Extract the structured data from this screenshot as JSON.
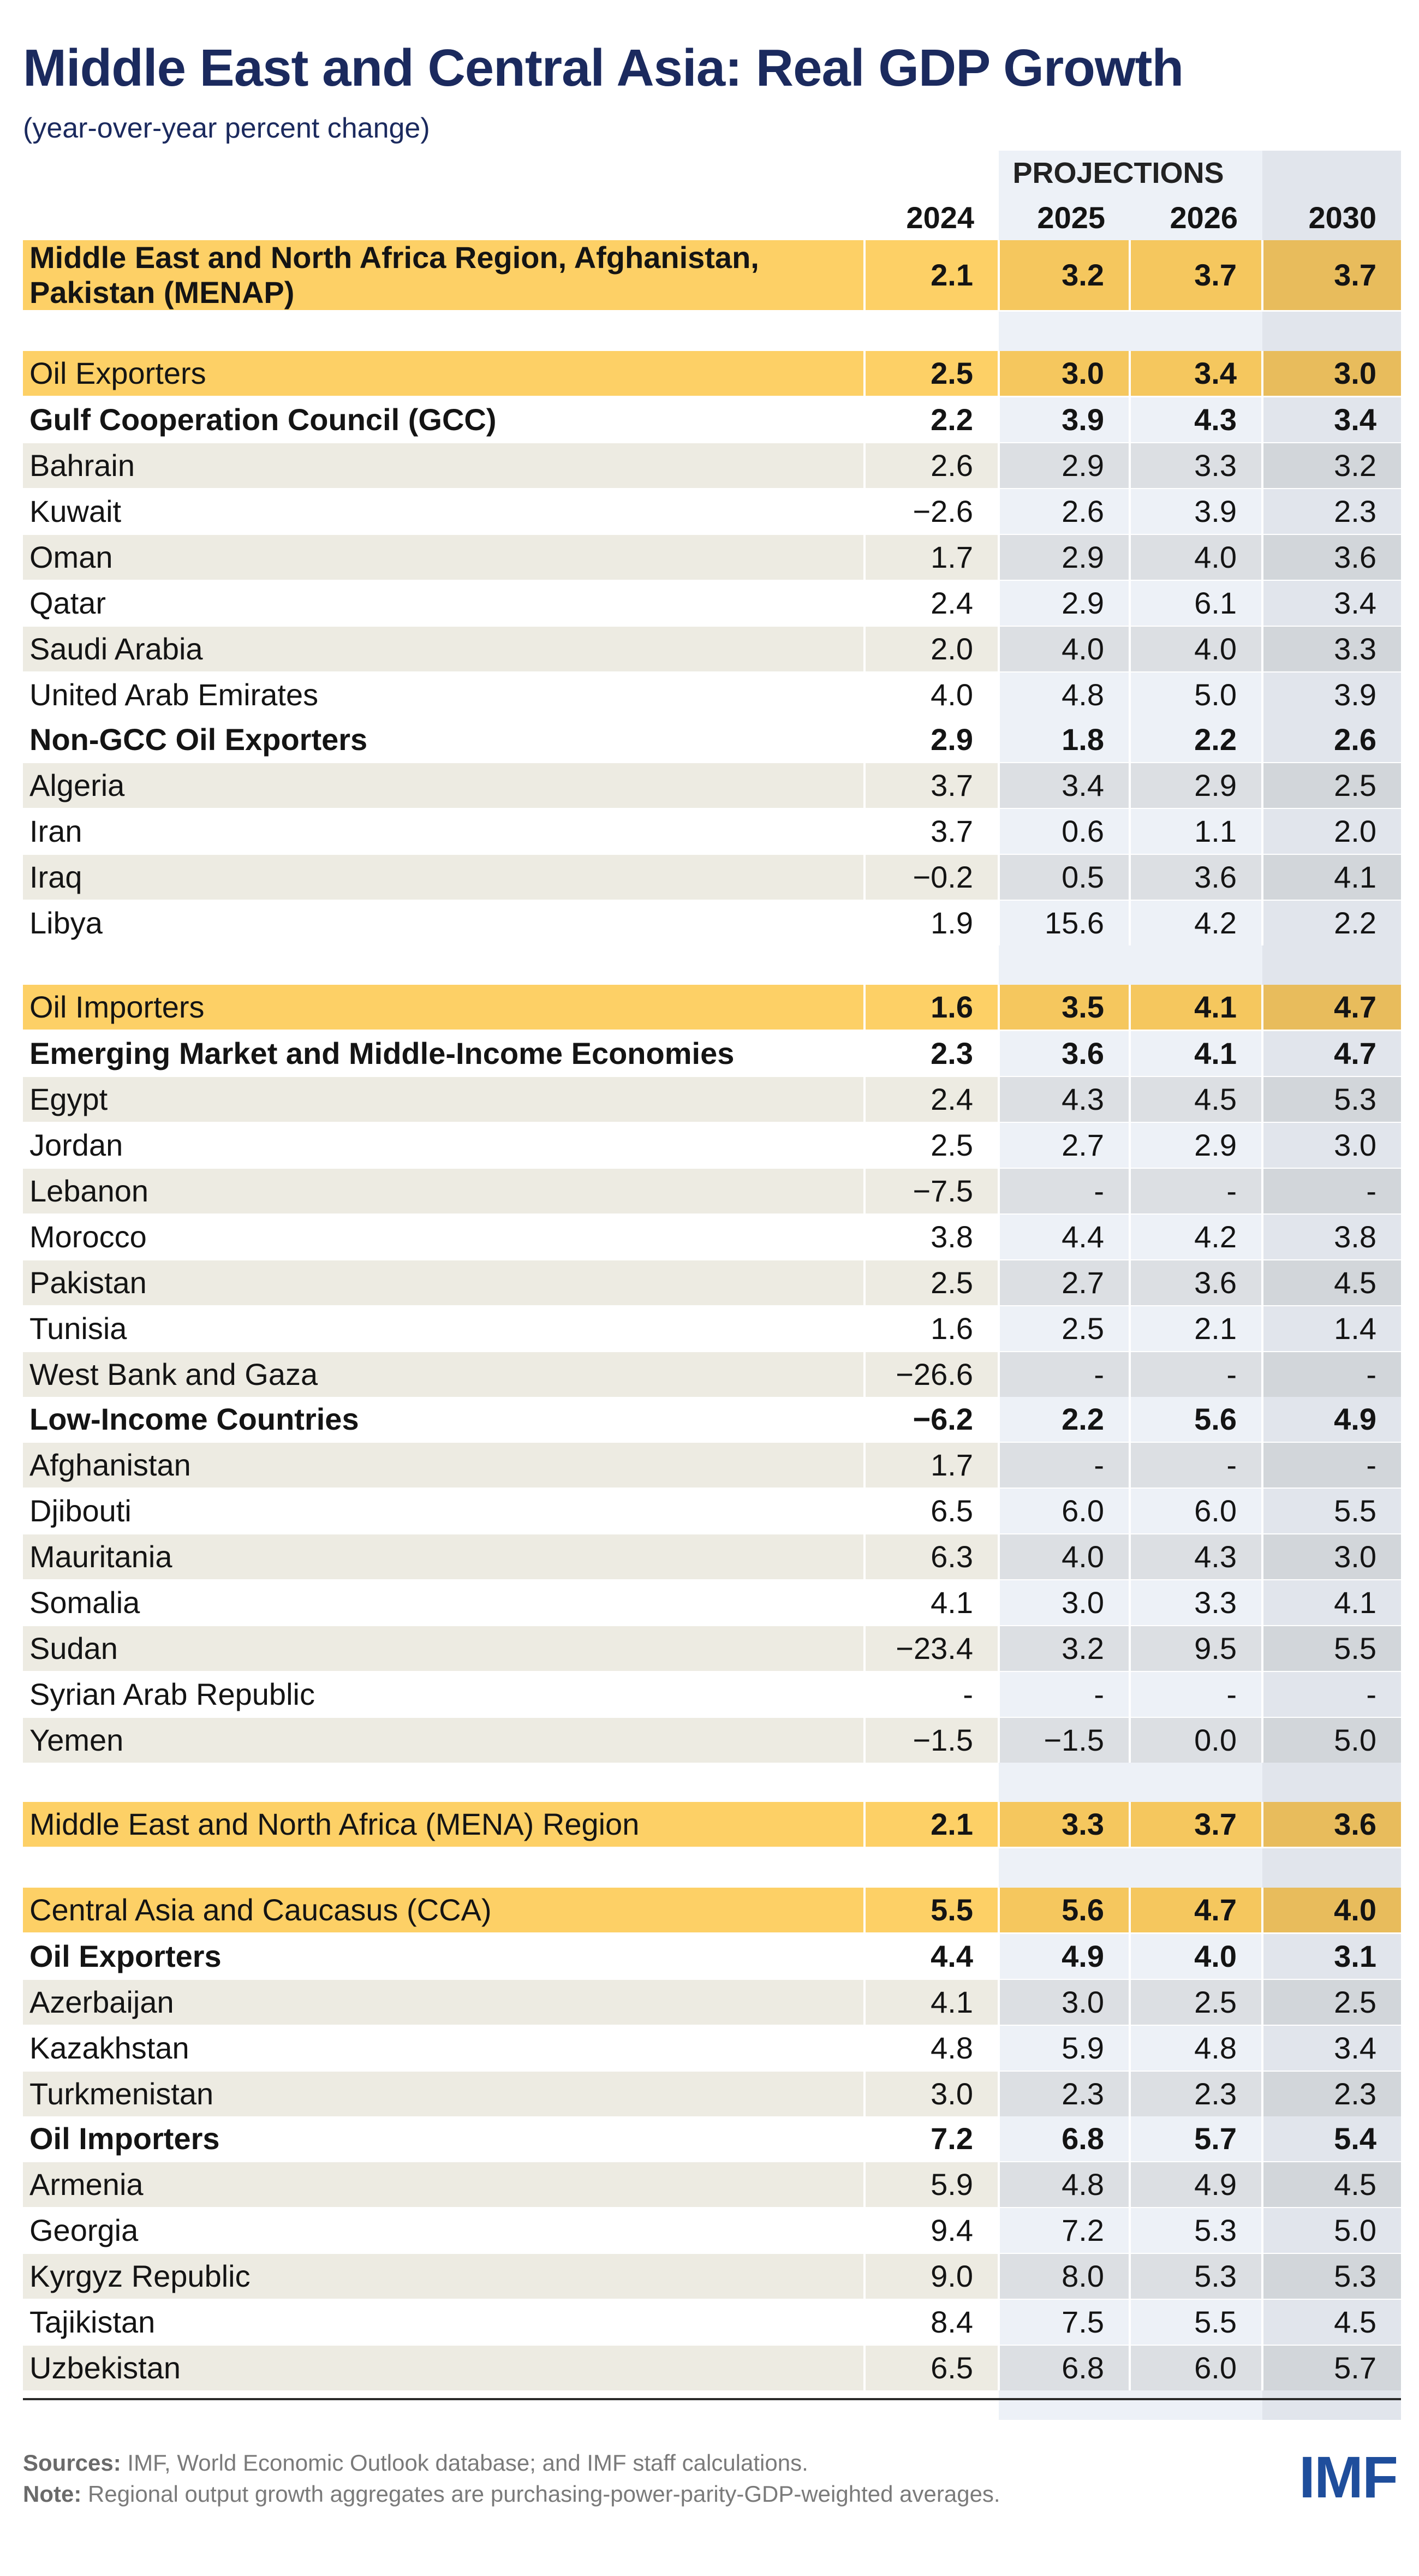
{
  "header": {
    "title": "Middle East and Central Asia: Real GDP Growth",
    "subtitle": "(year-over-year percent change)"
  },
  "table": {
    "projections_label": "PROJECTIONS",
    "columns": [
      "2024",
      "2025",
      "2026",
      "2030"
    ],
    "blocks": [
      {
        "label": "Middle East and North Africa Region, Afghanistan, Pakistan (MENAP)",
        "values": [
          "2.1",
          "3.2",
          "3.7",
          "3.7"
        ],
        "subgroups": []
      },
      {
        "label": "Oil Exporters",
        "values": [
          "2.5",
          "3.0",
          "3.4",
          "3.0"
        ],
        "subgroups": [
          {
            "label": "Gulf Cooperation Council (GCC)",
            "values": [
              "2.2",
              "3.9",
              "4.3",
              "3.4"
            ],
            "countries": [
              {
                "label": "Bahrain",
                "values": [
                  "2.6",
                  "2.9",
                  "3.3",
                  "3.2"
                ]
              },
              {
                "label": "Kuwait",
                "values": [
                  "−2.6",
                  "2.6",
                  "3.9",
                  "2.3"
                ]
              },
              {
                "label": "Oman",
                "values": [
                  "1.7",
                  "2.9",
                  "4.0",
                  "3.6"
                ]
              },
              {
                "label": "Qatar",
                "values": [
                  "2.4",
                  "2.9",
                  "6.1",
                  "3.4"
                ]
              },
              {
                "label": "Saudi Arabia",
                "values": [
                  "2.0",
                  "4.0",
                  "4.0",
                  "3.3"
                ]
              },
              {
                "label": "United Arab Emirates",
                "values": [
                  "4.0",
                  "4.8",
                  "5.0",
                  "3.9"
                ]
              }
            ]
          },
          {
            "label": "Non-GCC Oil Exporters",
            "values": [
              "2.9",
              "1.8",
              "2.2",
              "2.6"
            ],
            "countries": [
              {
                "label": "Algeria",
                "values": [
                  "3.7",
                  "3.4",
                  "2.9",
                  "2.5"
                ]
              },
              {
                "label": "Iran",
                "values": [
                  "3.7",
                  "0.6",
                  "1.1",
                  "2.0"
                ]
              },
              {
                "label": "Iraq",
                "values": [
                  "−0.2",
                  "0.5",
                  "3.6",
                  "4.1"
                ]
              },
              {
                "label": "Libya",
                "values": [
                  "1.9",
                  "15.6",
                  "4.2",
                  "2.2"
                ]
              }
            ]
          }
        ]
      },
      {
        "label": "Oil Importers",
        "values": [
          "1.6",
          "3.5",
          "4.1",
          "4.7"
        ],
        "subgroups": [
          {
            "label": "Emerging Market and Middle-Income Economies",
            "values": [
              "2.3",
              "3.6",
              "4.1",
              "4.7"
            ],
            "countries": [
              {
                "label": "Egypt",
                "values": [
                  "2.4",
                  "4.3",
                  "4.5",
                  "5.3"
                ]
              },
              {
                "label": "Jordan",
                "values": [
                  "2.5",
                  "2.7",
                  "2.9",
                  "3.0"
                ]
              },
              {
                "label": "Lebanon",
                "values": [
                  "−7.5",
                  "-",
                  "-",
                  "-"
                ]
              },
              {
                "label": "Morocco",
                "values": [
                  "3.8",
                  "4.4",
                  "4.2",
                  "3.8"
                ]
              },
              {
                "label": "Pakistan",
                "values": [
                  "2.5",
                  "2.7",
                  "3.6",
                  "4.5"
                ]
              },
              {
                "label": "Tunisia",
                "values": [
                  "1.6",
                  "2.5",
                  "2.1",
                  "1.4"
                ]
              },
              {
                "label": "West Bank and Gaza",
                "values": [
                  "−26.6",
                  "-",
                  "-",
                  "-"
                ]
              }
            ]
          },
          {
            "label": "Low-Income Countries",
            "values": [
              "−6.2",
              "2.2",
              "5.6",
              "4.9"
            ],
            "countries": [
              {
                "label": "Afghanistan",
                "values": [
                  "1.7",
                  "-",
                  "-",
                  "-"
                ]
              },
              {
                "label": "Djibouti",
                "values": [
                  "6.5",
                  "6.0",
                  "6.0",
                  "5.5"
                ]
              },
              {
                "label": "Mauritania",
                "values": [
                  "6.3",
                  "4.0",
                  "4.3",
                  "3.0"
                ]
              },
              {
                "label": "Somalia",
                "values": [
                  "4.1",
                  "3.0",
                  "3.3",
                  "4.1"
                ]
              },
              {
                "label": "Sudan",
                "values": [
                  "−23.4",
                  "3.2",
                  "9.5",
                  "5.5"
                ]
              },
              {
                "label": "Syrian Arab Republic",
                "values": [
                  "-",
                  "-",
                  "-",
                  "-"
                ]
              },
              {
                "label": "Yemen",
                "values": [
                  "−1.5",
                  "−1.5",
                  "0.0",
                  "5.0"
                ]
              }
            ]
          }
        ]
      },
      {
        "label": "Middle East and North Africa (MENA) Region",
        "values": [
          "2.1",
          "3.3",
          "3.7",
          "3.6"
        ],
        "subgroups": []
      },
      {
        "label": "Central Asia and Caucasus (CCA)",
        "values": [
          "5.5",
          "5.6",
          "4.7",
          "4.0"
        ],
        "subgroups": [
          {
            "label": "Oil Exporters",
            "values": [
              "4.4",
              "4.9",
              "4.0",
              "3.1"
            ],
            "countries": [
              {
                "label": "Azerbaijan",
                "values": [
                  "4.1",
                  "3.0",
                  "2.5",
                  "2.5"
                ]
              },
              {
                "label": "Kazakhstan",
                "values": [
                  "4.8",
                  "5.9",
                  "4.8",
                  "3.4"
                ]
              },
              {
                "label": "Turkmenistan",
                "values": [
                  "3.0",
                  "2.3",
                  "2.3",
                  "2.3"
                ]
              }
            ]
          },
          {
            "label": "Oil Importers",
            "values": [
              "7.2",
              "6.8",
              "5.7",
              "5.4"
            ],
            "countries": [
              {
                "label": "Armenia",
                "values": [
                  "5.9",
                  "4.8",
                  "4.9",
                  "4.5"
                ]
              },
              {
                "label": "Georgia",
                "values": [
                  "9.4",
                  "7.2",
                  "5.3",
                  "5.0"
                ]
              },
              {
                "label": "Kyrgyz Republic",
                "values": [
                  "9.0",
                  "8.0",
                  "5.3",
                  "5.3"
                ]
              },
              {
                "label": "Tajikistan",
                "values": [
                  "8.4",
                  "7.5",
                  "5.5",
                  "4.5"
                ]
              },
              {
                "label": "Uzbekistan",
                "values": [
                  "6.5",
                  "6.8",
                  "6.0",
                  "5.7"
                ]
              }
            ]
          }
        ]
      }
    ]
  },
  "footer": {
    "sources_label": "Sources:",
    "sources": "IMF, World Economic Outlook database; and IMF staff calculations.",
    "note_label": "Note:",
    "note": "Regional output growth aggregates are purchasing-power-parity-GDP-weighted averages.",
    "logo": "IMF"
  }
}
